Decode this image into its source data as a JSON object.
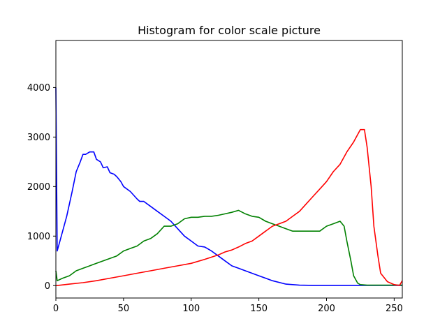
{
  "chart_data": {
    "type": "line",
    "title": "Histogram for color scale picture",
    "xlabel": "",
    "ylabel": "",
    "xlim": [
      0,
      256
    ],
    "ylim": [
      -250,
      4950
    ],
    "xticks": [
      0,
      50,
      100,
      150,
      200,
      250
    ],
    "yticks": [
      0,
      1000,
      2000,
      3000,
      4000
    ],
    "grid": false,
    "legend": "none",
    "series": [
      {
        "color": "#0000ff",
        "x": [
          0,
          1,
          3,
          5,
          8,
          12,
          15,
          18,
          20,
          22,
          25,
          28,
          30,
          33,
          35,
          38,
          40,
          43,
          45,
          48,
          50,
          55,
          60,
          62,
          65,
          70,
          75,
          80,
          85,
          90,
          95,
          100,
          105,
          110,
          115,
          120,
          125,
          130,
          135,
          140,
          150,
          160,
          170,
          180,
          190,
          200,
          210,
          220,
          230,
          240,
          250,
          256
        ],
        "y": [
          4000,
          700,
          900,
          1100,
          1400,
          1900,
          2300,
          2500,
          2650,
          2650,
          2700,
          2700,
          2550,
          2500,
          2380,
          2400,
          2280,
          2250,
          2200,
          2100,
          2000,
          1900,
          1750,
          1700,
          1700,
          1600,
          1500,
          1400,
          1300,
          1150,
          1000,
          900,
          800,
          780,
          700,
          600,
          500,
          400,
          350,
          300,
          200,
          100,
          30,
          10,
          5,
          5,
          5,
          5,
          5,
          5,
          5,
          5
        ]
      },
      {
        "color": "#008000",
        "x": [
          0,
          1,
          5,
          10,
          15,
          20,
          25,
          30,
          35,
          40,
          45,
          50,
          55,
          60,
          65,
          70,
          75,
          80,
          85,
          90,
          95,
          100,
          105,
          110,
          115,
          120,
          125,
          130,
          135,
          140,
          145,
          150,
          155,
          160,
          165,
          170,
          175,
          180,
          185,
          190,
          195,
          200,
          205,
          210,
          213,
          215,
          218,
          220,
          223,
          225,
          230,
          240,
          250,
          256
        ],
        "y": [
          300,
          100,
          150,
          200,
          300,
          350,
          400,
          450,
          500,
          550,
          600,
          700,
          750,
          800,
          900,
          950,
          1050,
          1200,
          1200,
          1250,
          1350,
          1380,
          1380,
          1400,
          1400,
          1420,
          1450,
          1480,
          1520,
          1450,
          1400,
          1380,
          1300,
          1250,
          1200,
          1150,
          1100,
          1100,
          1100,
          1100,
          1100,
          1200,
          1250,
          1300,
          1200,
          900,
          500,
          200,
          50,
          20,
          10,
          10,
          10,
          10
        ]
      },
      {
        "color": "#ff0000",
        "x": [
          0,
          10,
          20,
          30,
          40,
          50,
          60,
          70,
          80,
          90,
          100,
          110,
          120,
          125,
          130,
          135,
          140,
          145,
          150,
          155,
          160,
          165,
          170,
          175,
          180,
          185,
          190,
          195,
          200,
          205,
          210,
          215,
          220,
          225,
          228,
          230,
          233,
          235,
          238,
          240,
          245,
          250,
          254,
          256
        ],
        "y": [
          0,
          30,
          60,
          100,
          150,
          200,
          250,
          300,
          350,
          400,
          450,
          530,
          620,
          680,
          720,
          780,
          850,
          900,
          1000,
          1100,
          1200,
          1250,
          1300,
          1400,
          1500,
          1650,
          1800,
          1950,
          2100,
          2300,
          2450,
          2700,
          2900,
          3150,
          3150,
          2800,
          2000,
          1200,
          600,
          250,
          80,
          20,
          5,
          100
        ]
      }
    ]
  }
}
